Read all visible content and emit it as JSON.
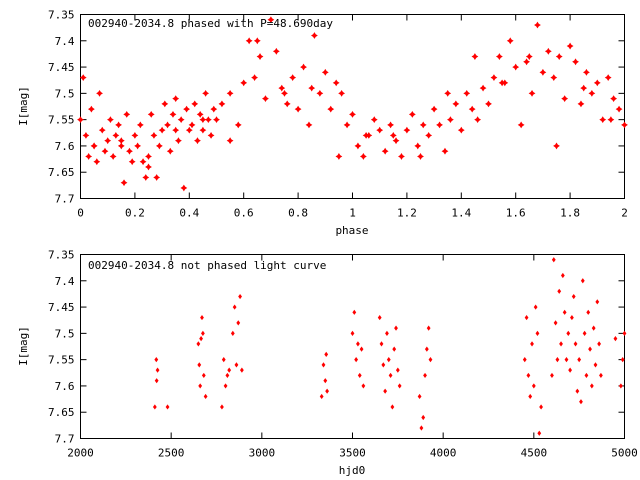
{
  "chart_data": [
    {
      "type": "scatter",
      "title": "002940-2034.8 phased with P=48.690day",
      "xlabel": "phase",
      "ylabel": "I[mag]",
      "xlim": [
        0,
        2
      ],
      "ylim": [
        7.35,
        7.7
      ],
      "y_inverted": true,
      "x_ticks": [
        "0",
        "0.2",
        "0.4",
        "0.6",
        "0.8",
        "1",
        "1.2",
        "1.4",
        "1.6",
        "1.8",
        "2"
      ],
      "y_ticks": [
        "7.35",
        "7.4",
        "7.45",
        "7.5",
        "7.55",
        "7.6",
        "7.65",
        "7.7"
      ],
      "marker": "filled-star",
      "color": "#ff0000",
      "grid": false,
      "series": [
        {
          "x": [
            0.0,
            0.01,
            0.02,
            0.03,
            0.04,
            0.05,
            0.06,
            0.07,
            0.08,
            0.09,
            0.1,
            0.11,
            0.12,
            0.13,
            0.14,
            0.15,
            0.16,
            0.17,
            0.18,
            0.19,
            0.2,
            0.21,
            0.22,
            0.23,
            0.24,
            0.25,
            0.26,
            0.27,
            0.28,
            0.29,
            0.3,
            0.31,
            0.32,
            0.33,
            0.34,
            0.35,
            0.36,
            0.37,
            0.38,
            0.39,
            0.4,
            0.41,
            0.42,
            0.43,
            0.44,
            0.45,
            0.46,
            0.47,
            0.48,
            0.49,
            0.5,
            0.52,
            0.55,
            0.58,
            0.6,
            0.62,
            0.64,
            0.66,
            0.68,
            0.7,
            0.72,
            0.74,
            0.76,
            0.78,
            0.8,
            0.82,
            0.84,
            0.86,
            0.88,
            0.9,
            0.92,
            0.94,
            0.96,
            0.98,
            1.0,
            1.02,
            1.04,
            1.06,
            1.08,
            1.1,
            1.12,
            1.14,
            1.16,
            1.18,
            1.2,
            1.22,
            1.24,
            1.26,
            1.28,
            1.3,
            1.32,
            1.34,
            1.36,
            1.38,
            1.4,
            1.42,
            1.44,
            1.46,
            1.48,
            1.5,
            1.52,
            1.54,
            1.56,
            1.58,
            1.6,
            1.62,
            1.64,
            1.66,
            1.68,
            1.7,
            1.72,
            1.74,
            1.76,
            1.78,
            1.8,
            1.82,
            1.84,
            1.86,
            1.88,
            1.9,
            1.92,
            1.94,
            1.96,
            1.98,
            2.0,
            0.05,
            0.15,
            0.25,
            0.35,
            0.45,
            0.55,
            0.65,
            0.75,
            0.85,
            0.95,
            1.05,
            1.15,
            1.25,
            1.35,
            1.45,
            1.55,
            1.65,
            1.75,
            1.85,
            1.95
          ],
          "y": [
            7.55,
            7.47,
            7.58,
            7.62,
            7.53,
            7.6,
            7.63,
            7.5,
            7.57,
            7.61,
            7.59,
            7.55,
            7.62,
            7.58,
            7.56,
            7.6,
            7.67,
            7.54,
            7.61,
            7.63,
            7.58,
            7.6,
            7.56,
            7.63,
            7.66,
            7.62,
            7.54,
            7.58,
            7.66,
            7.6,
            7.57,
            7.52,
            7.56,
            7.61,
            7.54,
            7.51,
            7.59,
            7.55,
            7.68,
            7.53,
            7.57,
            7.56,
            7.52,
            7.59,
            7.54,
            7.57,
            7.5,
            7.55,
            7.58,
            7.53,
            7.55,
            7.52,
            7.5,
            7.56,
            7.48,
            7.4,
            7.47,
            7.43,
            7.51,
            7.36,
            7.42,
            7.49,
            7.52,
            7.47,
            7.53,
            7.45,
            7.56,
            7.39,
            7.5,
            7.46,
            7.53,
            7.48,
            7.5,
            7.56,
            7.54,
            7.6,
            7.62,
            7.58,
            7.55,
            7.57,
            7.61,
            7.56,
            7.59,
            7.62,
            7.57,
            7.54,
            7.6,
            7.56,
            7.58,
            7.53,
            7.56,
            7.61,
            7.55,
            7.52,
            7.57,
            7.5,
            7.53,
            7.55,
            7.49,
            7.52,
            7.47,
            7.43,
            7.48,
            7.4,
            7.45,
            7.56,
            7.44,
            7.5,
            7.37,
            7.46,
            7.42,
            7.47,
            7.43,
            7.51,
            7.41,
            7.44,
            7.52,
            7.46,
            7.5,
            7.48,
            7.55,
            7.47,
            7.51,
            7.53,
            7.56,
            7.6,
            7.59,
            7.64,
            7.57,
            7.55,
            7.59,
            7.4,
            7.5,
            7.49,
            7.62,
            7.58,
            7.58,
            7.62,
            7.5,
            7.43,
            7.48,
            7.43,
            7.6,
            7.49,
            7.55
          ]
        }
      ]
    },
    {
      "type": "scatter",
      "title": "002940-2034.8 not phased light curve",
      "xlabel": "hjd0",
      "ylabel": "I[mag]",
      "xlim": [
        2000,
        5000
      ],
      "ylim": [
        7.35,
        7.7
      ],
      "y_inverted": true,
      "x_ticks": [
        "2000",
        "2500",
        "3000",
        "3500",
        "4000",
        "4500",
        "5000"
      ],
      "y_ticks": [
        "7.35",
        "7.4",
        "7.45",
        "7.5",
        "7.55",
        "7.6",
        "7.65",
        "7.7"
      ],
      "marker": "diamond",
      "color": "#ff0000",
      "grid": false,
      "series": [
        {
          "x": [
            2410,
            2418,
            2420,
            2425,
            2480,
            2650,
            2655,
            2660,
            2665,
            2670,
            2675,
            2680,
            2690,
            2780,
            2790,
            2800,
            2810,
            2820,
            2840,
            2850,
            2860,
            2870,
            2880,
            2890,
            3330,
            3340,
            3350,
            3355,
            3360,
            3500,
            3510,
            3520,
            3530,
            3540,
            3550,
            3560,
            3650,
            3660,
            3670,
            3680,
            3690,
            3700,
            3710,
            3720,
            3730,
            3740,
            3750,
            3760,
            3870,
            3880,
            3890,
            3900,
            3910,
            3920,
            3930,
            4450,
            4460,
            4470,
            4480,
            4490,
            4500,
            4510,
            4520,
            4530,
            4540,
            4600,
            4610,
            4620,
            4630,
            4640,
            4650,
            4660,
            4670,
            4680,
            4690,
            4700,
            4710,
            4720,
            4730,
            4740,
            4750,
            4760,
            4770,
            4780,
            4790,
            4800,
            4810,
            4820,
            4830,
            4840,
            4850,
            4860,
            4870,
            4950,
            4980,
            4990,
            5000
          ],
          "y": [
            7.64,
            7.55,
            7.59,
            7.57,
            7.64,
            7.52,
            7.56,
            7.6,
            7.51,
            7.47,
            7.5,
            7.58,
            7.62,
            7.64,
            7.55,
            7.6,
            7.58,
            7.57,
            7.5,
            7.45,
            7.56,
            7.48,
            7.43,
            7.57,
            7.62,
            7.56,
            7.59,
            7.54,
            7.61,
            7.5,
            7.46,
            7.55,
            7.52,
            7.58,
            7.53,
            7.6,
            7.47,
            7.52,
            7.56,
            7.61,
            7.5,
            7.55,
            7.58,
            7.64,
            7.53,
            7.49,
            7.57,
            7.6,
            7.62,
            7.68,
            7.66,
            7.58,
            7.53,
            7.49,
            7.55,
            7.55,
            7.47,
            7.58,
            7.62,
            7.52,
            7.6,
            7.45,
            7.5,
            7.69,
            7.64,
            7.58,
            7.36,
            7.48,
            7.55,
            7.42,
            7.52,
            7.39,
            7.46,
            7.55,
            7.5,
            7.57,
            7.47,
            7.43,
            7.52,
            7.61,
            7.55,
            7.63,
            7.4,
            7.5,
            7.58,
            7.46,
            7.53,
            7.6,
            7.49,
            7.56,
            7.44,
            7.52,
            7.58,
            7.51,
            7.6,
            7.55,
            7.5
          ]
        }
      ]
    }
  ]
}
